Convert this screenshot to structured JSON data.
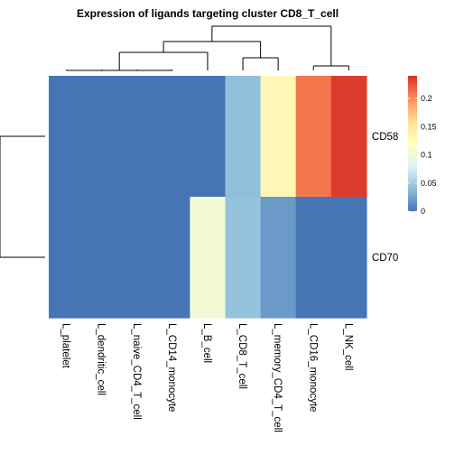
{
  "chart_data": {
    "type": "heatmap",
    "title": "Expression of ligands targeting cluster CD8_T_cell",
    "rows": [
      "CD58",
      "CD70"
    ],
    "columns": [
      "L_platelet",
      "L_dendritic_cell",
      "L_naive_CD4_T_cell",
      "L_CD14_monocyte",
      "L_B_cell",
      "L_CD8_T_cell",
      "L_memory_CD4_T_cell",
      "L_CD16_monocyte",
      "L_NK_cell"
    ],
    "values": [
      [
        0,
        0,
        0,
        0,
        0,
        0.04,
        0.13,
        0.21,
        0.235
      ],
      [
        0,
        0,
        0,
        0,
        0.105,
        0.042,
        0.02,
        0,
        0
      ]
    ],
    "color_scale": {
      "range": [
        0,
        0.24
      ],
      "ticks": [
        0,
        0.05,
        0.1,
        0.15,
        0.2
      ],
      "tick_labels": [
        "0",
        "0.05",
        "0.1",
        "0.15",
        "0.2"
      ],
      "colors": [
        "#4575B4",
        "#91BFDB",
        "#E0F3F8",
        "#FFFFBF",
        "#FEE090",
        "#FC8D59",
        "#D73027"
      ]
    },
    "row_dendrogram": true,
    "column_dendrogram": true,
    "legend_position": "right"
  }
}
